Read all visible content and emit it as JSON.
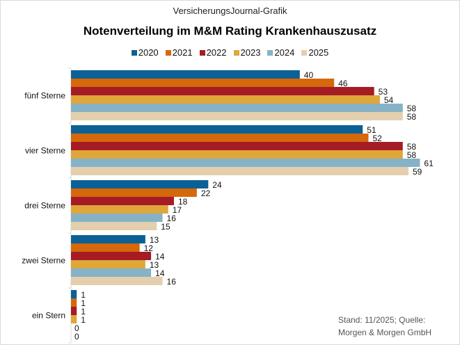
{
  "header": {
    "supertitle": "VersicherungsJournal-Grafik"
  },
  "chart_data": {
    "type": "bar",
    "orientation": "horizontal",
    "title": "Notenverteilung im M&M Rating Krankenhauszusatz",
    "categories": [
      "fünf Sterne",
      "vier Sterne",
      "drei Sterne",
      "zwei Sterne",
      "ein Stern"
    ],
    "series": [
      {
        "name": "2020",
        "color": "#0b6196",
        "values": [
          40,
          51,
          24,
          13,
          1
        ]
      },
      {
        "name": "2021",
        "color": "#d5680a",
        "values": [
          46,
          52,
          22,
          12,
          1
        ]
      },
      {
        "name": "2022",
        "color": "#a51c24",
        "values": [
          53,
          58,
          18,
          14,
          1
        ]
      },
      {
        "name": "2023",
        "color": "#dfa63a",
        "values": [
          54,
          58,
          17,
          13,
          1
        ]
      },
      {
        "name": "2024",
        "color": "#86b2c7",
        "values": [
          58,
          61,
          16,
          14,
          0
        ]
      },
      {
        "name": "2025",
        "color": "#e3cfad",
        "values": [
          58,
          59,
          15,
          16,
          0
        ]
      }
    ],
    "legend": "top",
    "grid": false,
    "xlim": [
      0,
      61
    ]
  },
  "footer": {
    "note_line1": "Stand: 11/2025;  Quelle:",
    "note_line2": "Morgen & Morgen GmbH"
  }
}
